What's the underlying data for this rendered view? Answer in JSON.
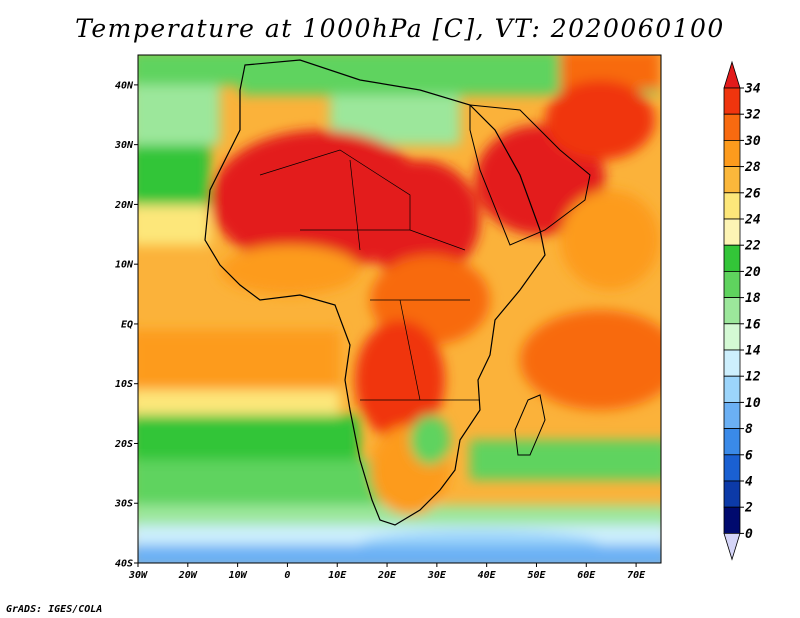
{
  "title": "Temperature at 1000hPa [C], VT: 2020060100",
  "footer": "GrADS: IGES/COLA",
  "map": {
    "lon_labels": [
      "30W",
      "20W",
      "10W",
      "0",
      "10E",
      "20E",
      "30E",
      "40E",
      "50E",
      "60E",
      "70E"
    ],
    "lat_labels": [
      "40N",
      "30N",
      "20N",
      "10N",
      "EQ",
      "10S",
      "20S",
      "30S",
      "40S"
    ],
    "lon_range": [
      -30,
      75
    ],
    "lat_range": [
      -40,
      45
    ],
    "variable": "Temperature at 1000hPa",
    "units": "C"
  },
  "colorbar": {
    "labels": [
      "34",
      "32",
      "30",
      "28",
      "26",
      "24",
      "22",
      "20",
      "18",
      "16",
      "14",
      "12",
      "10",
      "8",
      "6",
      "4",
      "2",
      "0"
    ],
    "colors": [
      "#e31b1b",
      "#f0350e",
      "#f86a10",
      "#fd9b1d",
      "#fbb73b",
      "#fde77a",
      "#fdf4b4",
      "#33c538",
      "#5fd35e",
      "#9ce79b",
      "#d4f9d4",
      "#cdeffd",
      "#9cd5fb",
      "#6bb0f4",
      "#3a8ae8",
      "#1a60d2",
      "#0c3aa8",
      "#000a6e",
      "#d5d5f8"
    ]
  }
}
